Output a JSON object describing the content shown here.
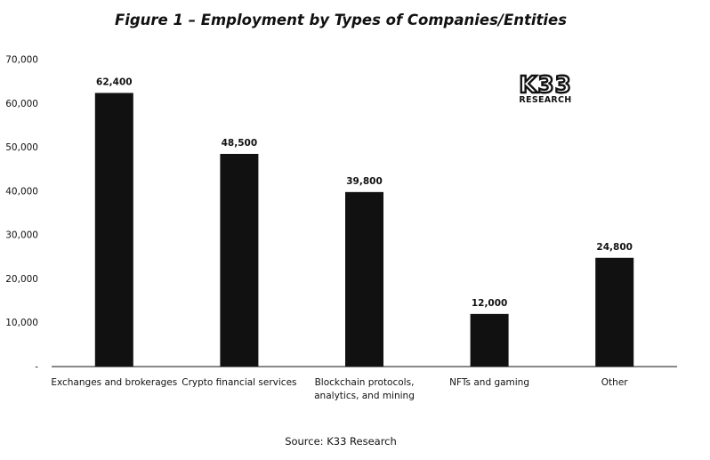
{
  "chart_data": {
    "type": "bar",
    "title": "Figure 1 – Employment by Types of Companies/Entities",
    "categories": [
      [
        "Exchanges and brokerages"
      ],
      [
        "Crypto financial services"
      ],
      [
        "Blockchain protocols,",
        "analytics, and mining"
      ],
      [
        "NFTs and gaming"
      ],
      [
        "Other"
      ]
    ],
    "values": [
      62400,
      48500,
      39800,
      12000,
      24800
    ],
    "data_labels": [
      "62,400",
      "48,500",
      "39,800",
      "12,000",
      "24,800"
    ],
    "y_ticks": [
      0,
      10000,
      20000,
      30000,
      40000,
      50000,
      60000,
      70000
    ],
    "y_tick_labels": [
      "-",
      "10,000",
      "20,000",
      "30,000",
      "40,000",
      "50,000",
      "60,000",
      "70,000"
    ],
    "ylim": [
      0,
      70000
    ],
    "xlabel": "",
    "ylabel": "",
    "grid": false,
    "bar_color": "#111111",
    "source": "Source: K33 Research"
  },
  "logo": {
    "main": "K33",
    "sub": "RESEARCH"
  }
}
